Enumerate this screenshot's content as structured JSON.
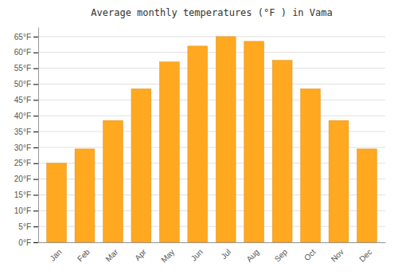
{
  "chart_data": {
    "type": "bar",
    "title": "Average monthly temperatures (°F ) in Vama",
    "categories": [
      "Jan",
      "Feb",
      "Mar",
      "Apr",
      "May",
      "Jun",
      "Jul",
      "Aug",
      "Sep",
      "Oct",
      "Nov",
      "Dec"
    ],
    "values": [
      25,
      29.5,
      38.5,
      48.5,
      57,
      62,
      65,
      63.5,
      57.5,
      48.5,
      38.5,
      29.5
    ],
    "color": "#FFA820",
    "ylim": [
      0,
      68
    ],
    "yticks": [
      {
        "value": 0,
        "label": "0°F"
      },
      {
        "value": 5,
        "label": "5°F"
      },
      {
        "value": 10,
        "label": "10°F"
      },
      {
        "value": 15,
        "label": "15°F"
      },
      {
        "value": 20,
        "label": "20°F"
      },
      {
        "value": 25,
        "label": "25°F"
      },
      {
        "value": 30,
        "label": "30°F"
      },
      {
        "value": 35,
        "label": "35°F"
      },
      {
        "value": 40,
        "label": "40°F"
      },
      {
        "value": 45,
        "label": "45°F"
      },
      {
        "value": 50,
        "label": "50°F"
      },
      {
        "value": 55,
        "label": "55°F"
      },
      {
        "value": 60,
        "label": "60°F"
      },
      {
        "value": 65,
        "label": "65°F"
      }
    ],
    "grid": true
  }
}
